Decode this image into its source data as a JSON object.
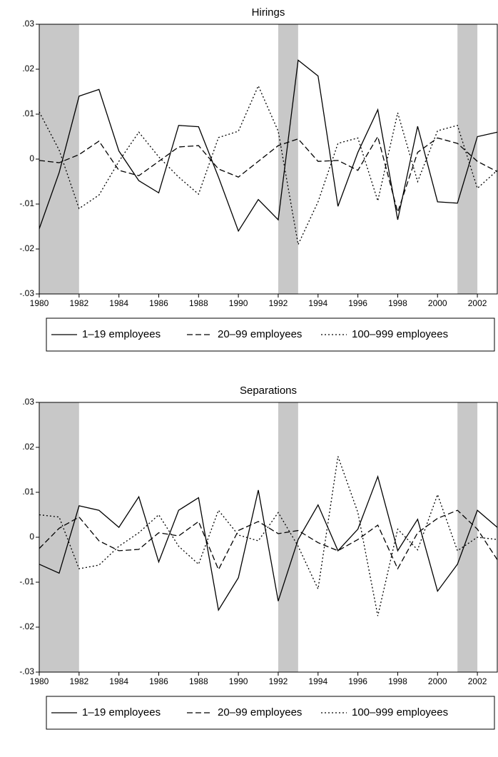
{
  "chart_data": [
    {
      "type": "line",
      "title": "Hirings",
      "x": [
        1980,
        1981,
        1982,
        1983,
        1984,
        1985,
        1986,
        1987,
        1988,
        1989,
        1990,
        1991,
        1992,
        1993,
        1994,
        1995,
        1996,
        1997,
        1998,
        1999,
        2000,
        2001,
        2002,
        2003
      ],
      "series": [
        {
          "name": "1–19 employees",
          "color": "#000000",
          "style": "solid",
          "values": [
            -0.0155,
            -0.003,
            0.014,
            0.0155,
            0.0018,
            -0.0048,
            -0.0075,
            0.0075,
            0.0072,
            -0.004,
            -0.016,
            -0.009,
            -0.0135,
            0.022,
            0.0185,
            -0.0105,
            0.0015,
            0.011,
            -0.0135,
            0.0073,
            -0.0095,
            -0.0098,
            0.005,
            0.006
          ]
        },
        {
          "name": "20–99 employees",
          "color": "#000000",
          "style": "dashed",
          "values": [
            -0.0003,
            -0.0008,
            0.001,
            0.004,
            -0.0025,
            -0.0037,
            -0.0005,
            0.0027,
            0.003,
            -0.0022,
            -0.004,
            -0.0005,
            0.003,
            0.0045,
            -0.0005,
            -0.0003,
            -0.0025,
            0.005,
            -0.0118,
            0.0015,
            0.0047,
            0.0035,
            -0.0005,
            -0.0028
          ]
        },
        {
          "name": "100–999 employees",
          "color": "#000000",
          "style": "dotted",
          "values": [
            0.0105,
            0.002,
            -0.011,
            -0.008,
            -0.0005,
            0.006,
            0.0005,
            -0.004,
            -0.0078,
            0.0048,
            0.0062,
            0.0163,
            0.0062,
            -0.019,
            -0.0095,
            0.0035,
            0.0047,
            -0.0093,
            0.0103,
            -0.005,
            0.0063,
            0.0075,
            -0.0065,
            -0.0025
          ]
        }
      ],
      "shaded_spans": [
        [
          1980,
          1982
        ],
        [
          1992,
          1993
        ],
        [
          2001,
          2002
        ]
      ],
      "shade_color": "#c8c8c8",
      "xlim": [
        1980,
        2003
      ],
      "xticks": [
        1980,
        1982,
        1984,
        1986,
        1988,
        1990,
        1992,
        1994,
        1996,
        1998,
        2000,
        2002
      ],
      "ylim": [
        -0.03,
        0.03
      ],
      "yticks": [
        {
          "value": -0.03,
          "label": "-.03"
        },
        {
          "value": -0.02,
          "label": "-.02"
        },
        {
          "value": -0.01,
          "label": "-.01"
        },
        0,
        {
          "value": 0.01,
          "label": ".01"
        },
        {
          "value": 0.02,
          "label": ".02"
        },
        {
          "value": 0.03,
          "label": ".03"
        }
      ]
    },
    {
      "type": "line",
      "title": "Separations",
      "x": [
        1980,
        1981,
        1982,
        1983,
        1984,
        1985,
        1986,
        1987,
        1988,
        1989,
        1990,
        1991,
        1992,
        1993,
        1994,
        1995,
        1996,
        1997,
        1998,
        1999,
        2000,
        2001,
        2002,
        2003
      ],
      "series": [
        {
          "name": "1–19 employees",
          "color": "#000000",
          "style": "solid",
          "values": [
            -0.006,
            -0.008,
            0.007,
            0.006,
            0.0022,
            0.009,
            -0.0055,
            0.006,
            0.0088,
            -0.0162,
            -0.009,
            0.0105,
            -0.0142,
            -0.0005,
            0.0072,
            -0.003,
            0.0018,
            0.0135,
            -0.003,
            0.004,
            -0.012,
            -0.006,
            0.006,
            0.0022
          ]
        },
        {
          "name": "20–99 employees",
          "color": "#000000",
          "style": "dashed",
          "values": [
            -0.0025,
            0.002,
            0.0045,
            -0.0008,
            -0.003,
            -0.0027,
            0.001,
            0.0003,
            0.0035,
            -0.0072,
            0.0015,
            0.0035,
            0.0008,
            0.0015,
            -0.0012,
            -0.003,
            -0.0005,
            0.0027,
            -0.007,
            0.001,
            0.0042,
            0.006,
            0.0018,
            -0.005
          ]
        },
        {
          "name": "100–999 employees",
          "color": "#000000",
          "style": "dotted",
          "values": [
            0.005,
            0.0045,
            -0.007,
            -0.0062,
            -0.002,
            0.001,
            0.005,
            -0.002,
            -0.006,
            0.006,
            0.0005,
            -0.0008,
            0.0055,
            -0.002,
            -0.0115,
            0.018,
            0.0055,
            -0.0175,
            0.0018,
            -0.0028,
            0.0095,
            -0.003,
            0,
            -0.0005
          ]
        }
      ],
      "shaded_spans": [
        [
          1980,
          1982
        ],
        [
          1992,
          1993
        ],
        [
          2001,
          2002
        ]
      ],
      "shade_color": "#c8c8c8",
      "xlim": [
        1980,
        2003
      ],
      "xticks": [
        1980,
        1982,
        1984,
        1986,
        1988,
        1990,
        1992,
        1994,
        1996,
        1998,
        2000,
        2002
      ],
      "ylim": [
        -0.03,
        0.03
      ],
      "yticks": [
        {
          "value": -0.03,
          "label": "-.03"
        },
        {
          "value": -0.02,
          "label": "-.02"
        },
        {
          "value": -0.01,
          "label": "-.01"
        },
        0,
        {
          "value": 0.01,
          "label": ".01"
        },
        {
          "value": 0.02,
          "label": ".02"
        },
        {
          "value": 0.03,
          "label": ".03"
        }
      ]
    }
  ]
}
